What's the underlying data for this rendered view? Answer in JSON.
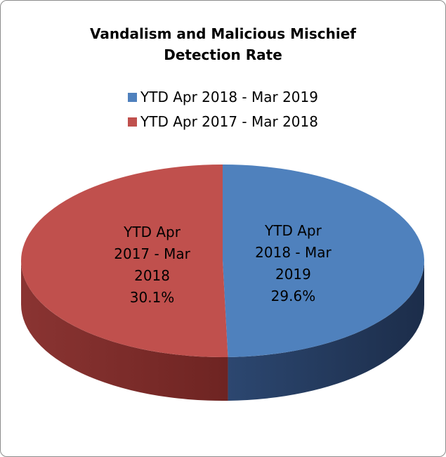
{
  "chart_data": {
    "type": "pie",
    "title": "Vandalism and Malicious Mischief Detection Rate",
    "categories": [
      "YTD Apr 2018 - Mar 2019",
      "YTD Apr 2017 - Mar 2018"
    ],
    "values": [
      29.6,
      30.1
    ],
    "value_labels": [
      "29.6%",
      "30.1%"
    ],
    "colors": [
      "#4f81bd",
      "#c0504d"
    ],
    "legend": "top"
  }
}
